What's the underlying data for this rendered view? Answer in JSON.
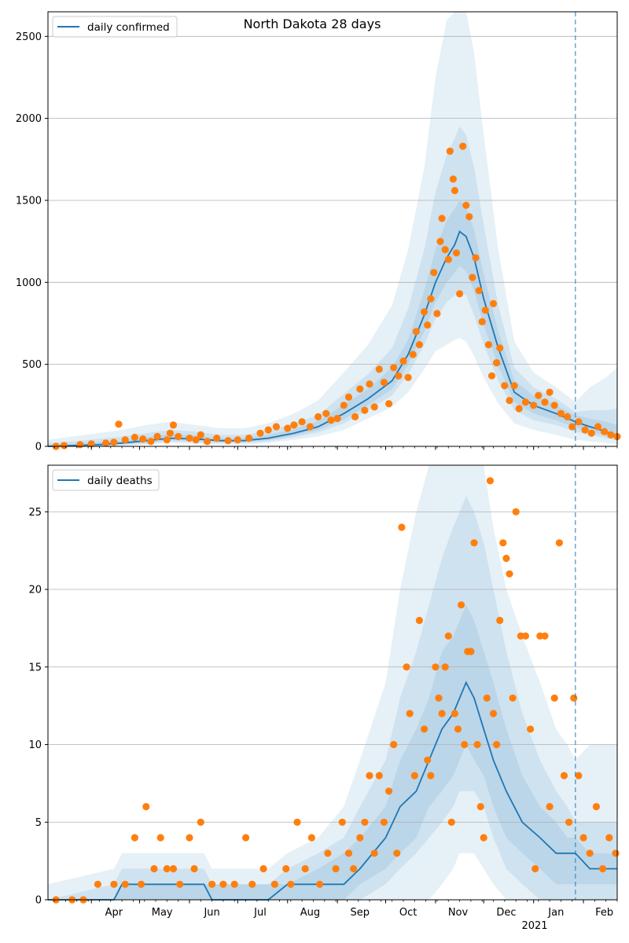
{
  "colors": {
    "median_line": "#1f77b4",
    "observed_points": "#ff7f0e",
    "band_fill": "#1f77b4",
    "grid": "#b0b0b0",
    "forecast_start_line": "#1f77b4"
  },
  "x_axis": {
    "month_labels": [
      "Apr",
      "May",
      "Jun",
      "Jul",
      "Aug",
      "Sep",
      "Oct",
      "Nov",
      "Dec",
      "Jan",
      "Feb"
    ],
    "year_label": "2021"
  },
  "chart_data": [
    {
      "type": "line",
      "title": "North Dakota 28 days",
      "legend": [
        "daily confirmed"
      ],
      "legend_position": "top-left",
      "grid": "horizontal",
      "ylim": [
        0,
        2650
      ],
      "yticks": [
        0,
        500,
        1000,
        1500,
        2000,
        2500
      ],
      "x_range": [
        "2020-03-05",
        "2021-02-22"
      ],
      "forecast_start": "2021-01-27",
      "bands_note": "nested uncertainty bands around median",
      "median": {
        "name": "daily confirmed",
        "x": [
          "2020-03-05",
          "2020-03-20",
          "2020-04-05",
          "2020-04-20",
          "2020-05-05",
          "2020-05-20",
          "2020-06-05",
          "2020-06-20",
          "2020-07-05",
          "2020-07-20",
          "2020-08-05",
          "2020-08-20",
          "2020-09-05",
          "2020-09-20",
          "2020-10-05",
          "2020-10-15",
          "2020-10-25",
          "2020-11-01",
          "2020-11-08",
          "2020-11-13",
          "2020-11-16",
          "2020-11-20",
          "2020-11-25",
          "2020-12-01",
          "2020-12-10",
          "2020-12-20",
          "2021-01-01",
          "2021-01-15",
          "2021-01-27",
          "2021-02-05",
          "2021-02-15",
          "2021-02-22"
        ],
        "y": [
          0,
          5,
          10,
          20,
          35,
          50,
          45,
          35,
          35,
          50,
          80,
          120,
          200,
          290,
          400,
          560,
          800,
          1000,
          1150,
          1230,
          1310,
          1280,
          1150,
          900,
          600,
          330,
          250,
          200,
          150,
          120,
          90,
          60
        ]
      },
      "bands": [
        {
          "level": "outer",
          "y_low": [
            0,
            0,
            0,
            5,
            10,
            20,
            15,
            10,
            10,
            20,
            40,
            60,
            100,
            170,
            240,
            330,
            470,
            580,
            620,
            650,
            660,
            640,
            550,
            420,
            260,
            140,
            100,
            70,
            40,
            30,
            20,
            15
          ],
          "y_high": [
            40,
            60,
            80,
            100,
            130,
            150,
            130,
            110,
            110,
            140,
            200,
            280,
            450,
            620,
            860,
            1200,
            1700,
            2250,
            2600,
            2700,
            2700,
            2650,
            2400,
            1900,
            1200,
            640,
            450,
            360,
            270,
            360,
            420,
            480
          ]
        },
        {
          "level": "middle",
          "y_low": [
            0,
            0,
            2,
            8,
            15,
            30,
            25,
            20,
            20,
            30,
            55,
            85,
            140,
            220,
            310,
            440,
            620,
            780,
            880,
            920,
            950,
            920,
            800,
            620,
            400,
            220,
            160,
            130,
            90,
            70,
            50,
            35
          ],
          "y_high": [
            20,
            30,
            45,
            60,
            80,
            100,
            90,
            70,
            70,
            95,
            140,
            190,
            320,
            440,
            600,
            840,
            1200,
            1550,
            1780,
            1880,
            1950,
            1900,
            1700,
            1350,
            860,
            480,
            360,
            290,
            210,
            220,
            220,
            230
          ]
        },
        {
          "level": "inner",
          "y_low": [
            0,
            0,
            5,
            12,
            22,
            38,
            32,
            26,
            26,
            38,
            65,
            100,
            165,
            250,
            350,
            500,
            700,
            880,
            1000,
            1060,
            1100,
            1070,
            950,
            740,
            490,
            270,
            200,
            160,
            115,
            90,
            65,
            45
          ],
          "y_high": [
            10,
            15,
            25,
            35,
            55,
            75,
            65,
            50,
            50,
            70,
            105,
            155,
            255,
            350,
            480,
            650,
            950,
            1200,
            1380,
            1450,
            1500,
            1460,
            1320,
            1050,
            700,
            400,
            310,
            250,
            190,
            170,
            150,
            130
          ]
        }
      ],
      "observed": {
        "name": "observed daily confirmed",
        "x": [
          "2020-03-10",
          "2020-03-15",
          "2020-03-25",
          "2020-04-01",
          "2020-04-10",
          "2020-04-15",
          "2020-04-18",
          "2020-04-22",
          "2020-04-28",
          "2020-05-03",
          "2020-05-08",
          "2020-05-12",
          "2020-05-18",
          "2020-05-20",
          "2020-05-22",
          "2020-05-25",
          "2020-06-01",
          "2020-06-05",
          "2020-06-08",
          "2020-06-12",
          "2020-06-18",
          "2020-06-25",
          "2020-07-01",
          "2020-07-08",
          "2020-07-15",
          "2020-07-20",
          "2020-07-25",
          "2020-08-01",
          "2020-08-05",
          "2020-08-10",
          "2020-08-15",
          "2020-08-20",
          "2020-08-25",
          "2020-08-28",
          "2020-09-01",
          "2020-09-05",
          "2020-09-08",
          "2020-09-12",
          "2020-09-15",
          "2020-09-18",
          "2020-09-21",
          "2020-09-24",
          "2020-09-27",
          "2020-09-30",
          "2020-10-03",
          "2020-10-06",
          "2020-10-09",
          "2020-10-12",
          "2020-10-15",
          "2020-10-18",
          "2020-10-20",
          "2020-10-22",
          "2020-10-25",
          "2020-10-27",
          "2020-10-29",
          "2020-10-31",
          "2020-11-02",
          "2020-11-04",
          "2020-11-05",
          "2020-11-07",
          "2020-11-09",
          "2020-11-10",
          "2020-11-12",
          "2020-11-13",
          "2020-11-14",
          "2020-11-16",
          "2020-11-18",
          "2020-11-20",
          "2020-11-22",
          "2020-11-24",
          "2020-11-26",
          "2020-11-28",
          "2020-11-30",
          "2020-12-02",
          "2020-12-04",
          "2020-12-06",
          "2020-12-07",
          "2020-12-09",
          "2020-12-11",
          "2020-12-14",
          "2020-12-17",
          "2020-12-20",
          "2020-12-23",
          "2020-12-27",
          "2021-01-01",
          "2021-01-04",
          "2021-01-08",
          "2021-01-11",
          "2021-01-14",
          "2021-01-18",
          "2021-01-22",
          "2021-01-25",
          "2021-01-29",
          "2021-02-02",
          "2021-02-06",
          "2021-02-10",
          "2021-02-14",
          "2021-02-18",
          "2021-02-22"
        ],
        "y": [
          0,
          5,
          10,
          15,
          20,
          25,
          135,
          40,
          55,
          45,
          30,
          60,
          40,
          80,
          130,
          60,
          50,
          40,
          70,
          30,
          50,
          35,
          40,
          50,
          80,
          100,
          120,
          110,
          130,
          150,
          120,
          180,
          200,
          160,
          170,
          250,
          300,
          180,
          350,
          220,
          380,
          240,
          470,
          390,
          260,
          480,
          430,
          520,
          420,
          560,
          700,
          620,
          820,
          740,
          900,
          1060,
          810,
          1250,
          1390,
          1200,
          1140,
          1800,
          1630,
          1560,
          1180,
          930,
          1830,
          1470,
          1400,
          1030,
          1150,
          950,
          760,
          830,
          620,
          430,
          870,
          510,
          600,
          370,
          280,
          370,
          230,
          270,
          250,
          310,
          270,
          330,
          250,
          200,
          180,
          120,
          150,
          100,
          80,
          120,
          90,
          70,
          60
        ]
      }
    },
    {
      "type": "line",
      "title": "",
      "legend": [
        "daily deaths"
      ],
      "legend_position": "top-left",
      "grid": "horizontal",
      "ylim": [
        0,
        28
      ],
      "yticks": [
        0,
        5,
        10,
        15,
        20,
        25
      ],
      "x_range": [
        "2020-03-05",
        "2021-02-22"
      ],
      "forecast_start": "2021-01-27",
      "bands_note": "nested uncertainty bands around median",
      "median": {
        "name": "daily deaths",
        "x": [
          "2020-03-05",
          "2020-04-15",
          "2020-04-20",
          "2020-05-10",
          "2020-06-10",
          "2020-06-15",
          "2020-07-05",
          "2020-07-20",
          "2020-08-01",
          "2020-08-20",
          "2020-09-05",
          "2020-09-15",
          "2020-10-01",
          "2020-10-10",
          "2020-10-20",
          "2020-10-28",
          "2020-11-05",
          "2020-11-12",
          "2020-11-16",
          "2020-11-20",
          "2020-11-25",
          "2020-12-01",
          "2020-12-07",
          "2020-12-15",
          "2020-12-25",
          "2021-01-05",
          "2021-01-15",
          "2021-01-22",
          "2021-01-27",
          "2021-02-05",
          "2021-02-22"
        ],
        "y": [
          0,
          0,
          1,
          1,
          1,
          0,
          0,
          0,
          1,
          1,
          1,
          2,
          4,
          6,
          7,
          9,
          11,
          12,
          13,
          14,
          13,
          11,
          9,
          7,
          5,
          4,
          3,
          3,
          3,
          2,
          2
        ]
      },
      "bands": [
        {
          "level": "outer",
          "y_low": [
            0,
            0,
            0,
            0,
            0,
            0,
            0,
            0,
            0,
            0,
            0,
            0,
            0,
            0,
            0,
            0,
            1,
            2,
            3,
            3,
            3,
            2,
            1,
            0,
            0,
            0,
            0,
            0,
            0,
            0,
            0
          ],
          "y_high": [
            1,
            2,
            3,
            3,
            3,
            2,
            2,
            2,
            3,
            4,
            6,
            9,
            14,
            20,
            25,
            28,
            30,
            32,
            32,
            32,
            30,
            28,
            24,
            20,
            17,
            14,
            11,
            10,
            9,
            10,
            10
          ]
        },
        {
          "level": "middle",
          "y_low": [
            0,
            0,
            0,
            0,
            0,
            0,
            0,
            0,
            0,
            0,
            0,
            0,
            1,
            2,
            3,
            4,
            5,
            6,
            7,
            7,
            7,
            6,
            4,
            2,
            1,
            0,
            0,
            0,
            0,
            0,
            0
          ],
          "y_high": [
            0,
            1,
            2,
            2,
            2,
            1,
            1,
            1,
            2,
            3,
            4,
            6,
            9,
            13,
            16,
            19,
            22,
            24,
            25,
            26,
            25,
            23,
            20,
            16,
            12,
            9,
            7,
            6,
            5,
            5,
            5
          ]
        },
        {
          "level": "inner",
          "y_low": [
            0,
            0,
            0,
            0,
            0,
            0,
            0,
            0,
            0,
            0,
            0,
            1,
            2,
            3,
            4,
            6,
            7,
            8,
            9,
            10,
            9,
            8,
            6,
            4,
            3,
            2,
            1,
            1,
            1,
            1,
            1
          ],
          "y_high": [
            0,
            0,
            1,
            1,
            1,
            1,
            1,
            1,
            1,
            2,
            3,
            4,
            6,
            9,
            11,
            13,
            16,
            17,
            18,
            19,
            18,
            16,
            14,
            11,
            8,
            6,
            5,
            4,
            4,
            3,
            3
          ]
        }
      ],
      "observed": {
        "name": "observed daily deaths",
        "x": [
          "2020-03-10",
          "2020-03-20",
          "2020-03-27",
          "2020-04-05",
          "2020-04-15",
          "2020-04-22",
          "2020-04-28",
          "2020-05-02",
          "2020-05-05",
          "2020-05-10",
          "2020-05-14",
          "2020-05-18",
          "2020-05-22",
          "2020-05-26",
          "2020-06-01",
          "2020-06-04",
          "2020-06-08",
          "2020-06-15",
          "2020-06-22",
          "2020-06-29",
          "2020-07-06",
          "2020-07-10",
          "2020-07-17",
          "2020-07-24",
          "2020-07-31",
          "2020-08-03",
          "2020-08-07",
          "2020-08-12",
          "2020-08-16",
          "2020-08-21",
          "2020-08-26",
          "2020-08-31",
          "2020-09-04",
          "2020-09-08",
          "2020-09-11",
          "2020-09-15",
          "2020-09-18",
          "2020-09-21",
          "2020-09-24",
          "2020-09-27",
          "2020-09-30",
          "2020-10-03",
          "2020-10-06",
          "2020-10-08",
          "2020-10-11",
          "2020-10-14",
          "2020-10-16",
          "2020-10-19",
          "2020-10-22",
          "2020-10-25",
          "2020-10-27",
          "2020-10-29",
          "2020-11-01",
          "2020-11-03",
          "2020-11-05",
          "2020-11-07",
          "2020-11-09",
          "2020-11-11",
          "2020-11-13",
          "2020-11-15",
          "2020-11-17",
          "2020-11-19",
          "2020-11-21",
          "2020-11-23",
          "2020-11-25",
          "2020-11-27",
          "2020-11-29",
          "2020-12-01",
          "2020-12-03",
          "2020-12-05",
          "2020-12-07",
          "2020-12-09",
          "2020-12-11",
          "2020-12-13",
          "2020-12-15",
          "2020-12-17",
          "2020-12-19",
          "2020-12-21",
          "2020-12-24",
          "2020-12-27",
          "2020-12-30",
          "2021-01-02",
          "2021-01-05",
          "2021-01-08",
          "2021-01-11",
          "2021-01-14",
          "2021-01-17",
          "2021-01-20",
          "2021-01-23",
          "2021-01-26",
          "2021-01-29",
          "2021-02-01",
          "2021-02-05",
          "2021-02-09",
          "2021-02-13",
          "2021-02-17",
          "2021-02-21"
        ],
        "y": [
          0,
          0,
          0,
          1,
          1,
          1,
          4,
          1,
          6,
          2,
          4,
          2,
          2,
          1,
          4,
          2,
          5,
          1,
          1,
          1,
          4,
          1,
          2,
          1,
          2,
          1,
          5,
          2,
          4,
          1,
          3,
          2,
          5,
          3,
          2,
          4,
          5,
          8,
          3,
          8,
          5,
          7,
          10,
          3,
          24,
          15,
          12,
          8,
          18,
          11,
          9,
          8,
          15,
          13,
          12,
          15,
          17,
          5,
          12,
          11,
          19,
          10,
          16,
          16,
          23,
          10,
          6,
          4,
          13,
          27,
          12,
          10,
          18,
          23,
          22,
          21,
          13,
          25,
          17,
          17,
          11,
          2,
          17,
          17,
          6,
          13,
          23,
          8,
          5,
          13,
          8,
          4,
          3,
          6,
          2,
          4,
          3
        ]
      }
    }
  ]
}
